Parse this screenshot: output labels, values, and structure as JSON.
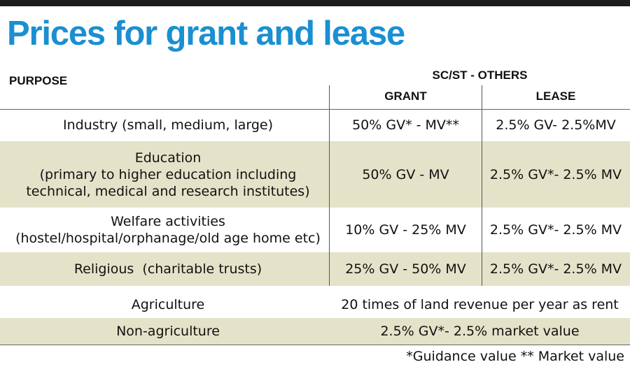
{
  "title": "Prices for grant and lease",
  "columns": {
    "purpose": "PURPOSE",
    "group": "SC/ST - OTHERS",
    "grant": "GRANT",
    "lease": "LEASE"
  },
  "rows": [
    {
      "purpose": [
        "Industry (small, medium, large)"
      ],
      "grant": "50% GV* - MV**",
      "lease": "2.5% GV- 2.5%MV"
    },
    {
      "purpose": [
        "Education",
        "(primary to higher education including",
        "technical, medical and research institutes)"
      ],
      "grant": "50% GV - MV",
      "lease": "2.5% GV*- 2.5% MV"
    },
    {
      "purpose": [
        "Welfare activities",
        "(hostel/hospital/orphanage/old age home etc)"
      ],
      "grant": "10% GV - 25% MV",
      "lease": "2.5% GV*- 2.5% MV"
    },
    {
      "purpose": [
        "Religious  (charitable trusts)"
      ],
      "grant": "25% GV - 50% MV",
      "lease": "2.5% GV*- 2.5% MV"
    },
    {
      "purpose": [
        "Agriculture"
      ],
      "combined": "20 times of land revenue per year as rent"
    },
    {
      "purpose": [
        "Non-agriculture"
      ],
      "combined": "2.5% GV*- 2.5% market value"
    }
  ],
  "footnote": "*Guidance value ** Market value"
}
